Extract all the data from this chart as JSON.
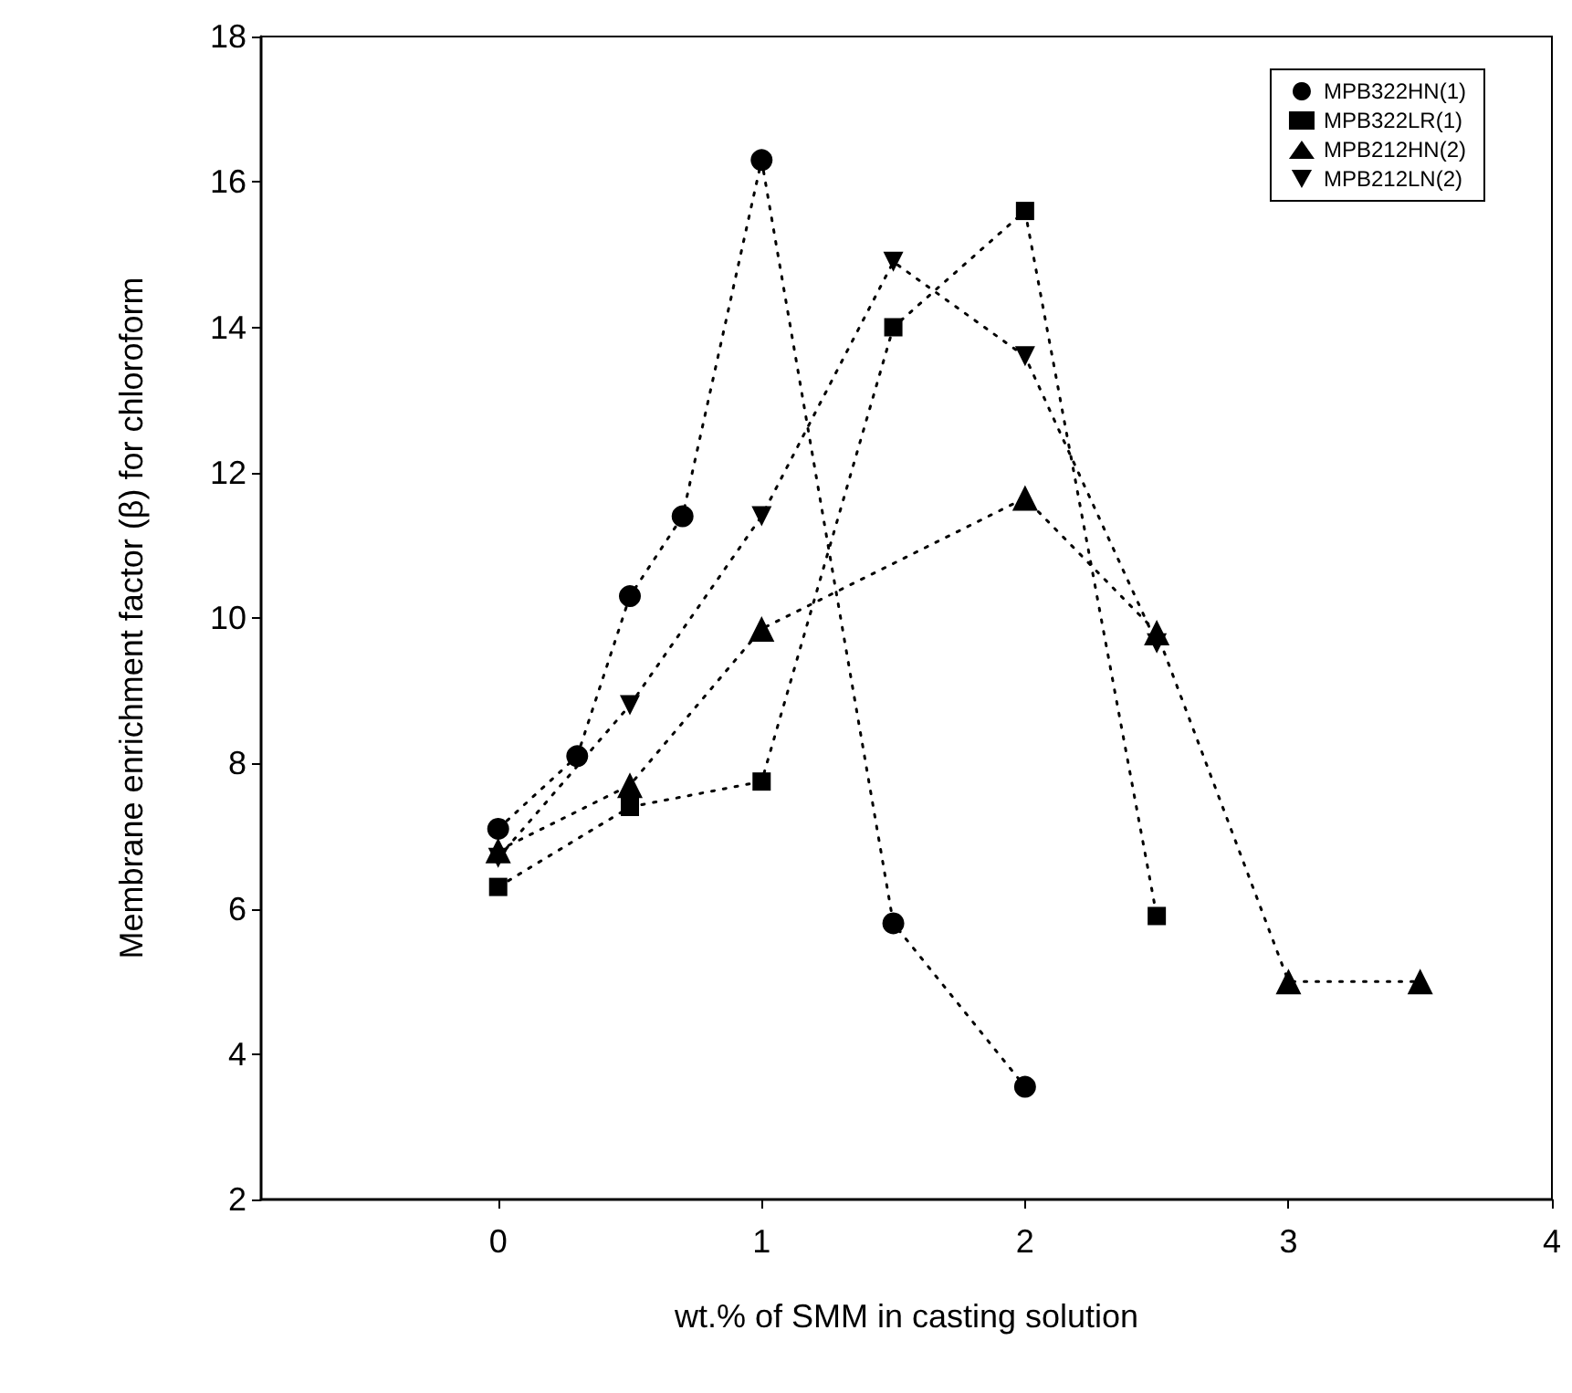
{
  "chart_data": {
    "type": "line",
    "xlabel": "wt.% of SMM in casting solution",
    "ylabel": "Membrane enrichment factor (β) for chloroform",
    "xlim": [
      -0.9,
      4
    ],
    "xticks": [
      0,
      1,
      2,
      3,
      4
    ],
    "ylim": [
      2,
      18
    ],
    "yticks": [
      2,
      4,
      6,
      8,
      10,
      12,
      14,
      16,
      18
    ],
    "grid": false,
    "legend": "top right",
    "line_style": "dotted",
    "series": [
      {
        "name": "MPB322HN(1)",
        "color": "#000000",
        "marker": "circle",
        "x": [
          0,
          0.3,
          0.5,
          0.7,
          1,
          1.5,
          2
        ],
        "values": [
          7.1,
          8.1,
          10.3,
          11.4,
          16.3,
          5.8,
          3.55
        ]
      },
      {
        "name": "MPB322LR(1)",
        "color": "#000000",
        "marker": "square",
        "x": [
          0,
          0.5,
          1,
          1.5,
          2,
          2.5
        ],
        "values": [
          6.3,
          7.4,
          7.75,
          14.0,
          15.6,
          5.9
        ]
      },
      {
        "name": "MPB212HN(2)",
        "color": "#000000",
        "marker": "triangle",
        "x": [
          0,
          0.5,
          1,
          2,
          2.5,
          3,
          3.5
        ],
        "values": [
          6.8,
          7.7,
          9.85,
          11.65,
          9.8,
          5.0,
          5.0
        ]
      },
      {
        "name": "MPB212LN(2)",
        "color": "#000000",
        "marker": "triangle-down",
        "x": [
          0,
          0.5,
          1,
          1.5,
          2,
          2.5
        ],
        "values": [
          6.7,
          8.8,
          11.4,
          14.9,
          13.6,
          9.65
        ]
      }
    ]
  }
}
